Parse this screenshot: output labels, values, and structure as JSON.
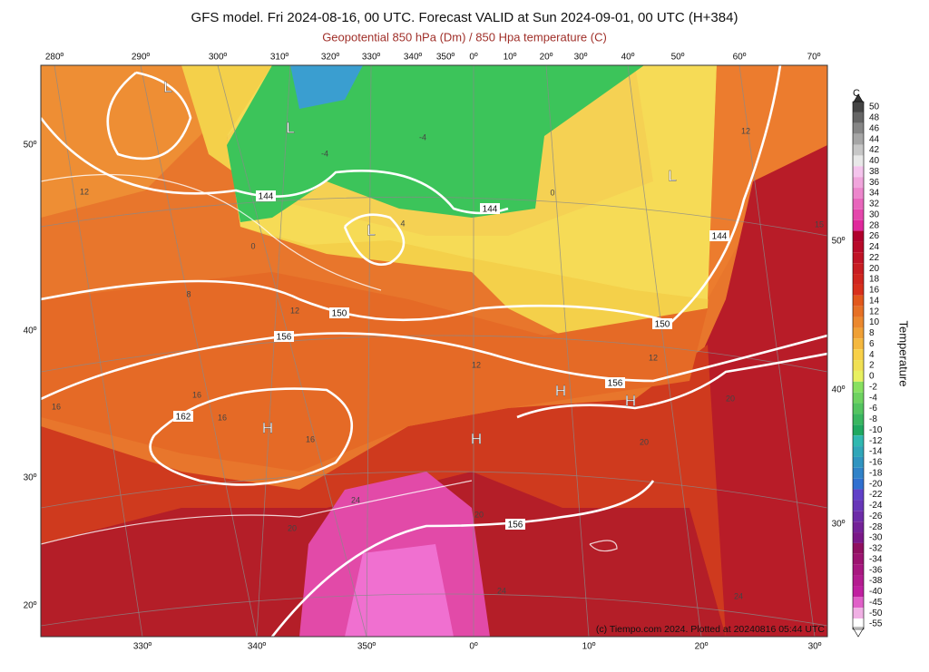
{
  "header": {
    "title": "GFS model. Fri 2024-08-16, 00 UTC. Forecast VALID at Sun 2024-09-01, 00 UTC (H+384)",
    "subtitle": "Geopotential 850 hPa (Dm) / 850 Hpa temperature (C)"
  },
  "map": {
    "top_longitudes": [
      "280º",
      "290º",
      "300º",
      "310º",
      "320º",
      "330º",
      "340º",
      "350º",
      "0º",
      "10º",
      "20º",
      "30º",
      "40º",
      "50º",
      "60º",
      "70º"
    ],
    "bottom_longitudes": [
      "330º",
      "340º",
      "350º",
      "0º",
      "10º",
      "20º",
      "30º"
    ],
    "left_latitudes": [
      "50º",
      "40º",
      "30º",
      "20º"
    ],
    "right_latitudes": [
      "50º",
      "40º",
      "30º"
    ],
    "pressure_centers": [
      "L",
      "L",
      "L",
      "L",
      "H",
      "H",
      "H",
      "H"
    ],
    "contour_labels": [
      "144",
      "144",
      "144",
      "150",
      "150",
      "156",
      "156",
      "156",
      "162"
    ],
    "temperature_labels": [
      "12",
      "12",
      "12",
      "12",
      "12",
      "16",
      "16",
      "16",
      "16",
      "20",
      "20",
      "20",
      "20",
      "24",
      "24",
      "24",
      "8",
      "4",
      "-4",
      "-4",
      "0",
      "0",
      "15"
    ]
  },
  "colorbar": {
    "unit": "C",
    "label": "Temperature",
    "ticks": [
      "50",
      "48",
      "46",
      "44",
      "42",
      "40",
      "38",
      "36",
      "34",
      "32",
      "30",
      "28",
      "26",
      "24",
      "22",
      "20",
      "18",
      "16",
      "14",
      "12",
      "10",
      "8",
      "6",
      "4",
      "2",
      "0",
      "-2",
      "-4",
      "-6",
      "-8",
      "-10",
      "-12",
      "-14",
      "-16",
      "-18",
      "-20",
      "-22",
      "-24",
      "-26",
      "-28",
      "-30",
      "-32",
      "-34",
      "-36",
      "-38",
      "-40",
      "-45",
      "-50",
      "-55"
    ]
  },
  "credit": "(c) Tiempo.com 2024. Plotted at 20240816 05:44 UTC"
}
